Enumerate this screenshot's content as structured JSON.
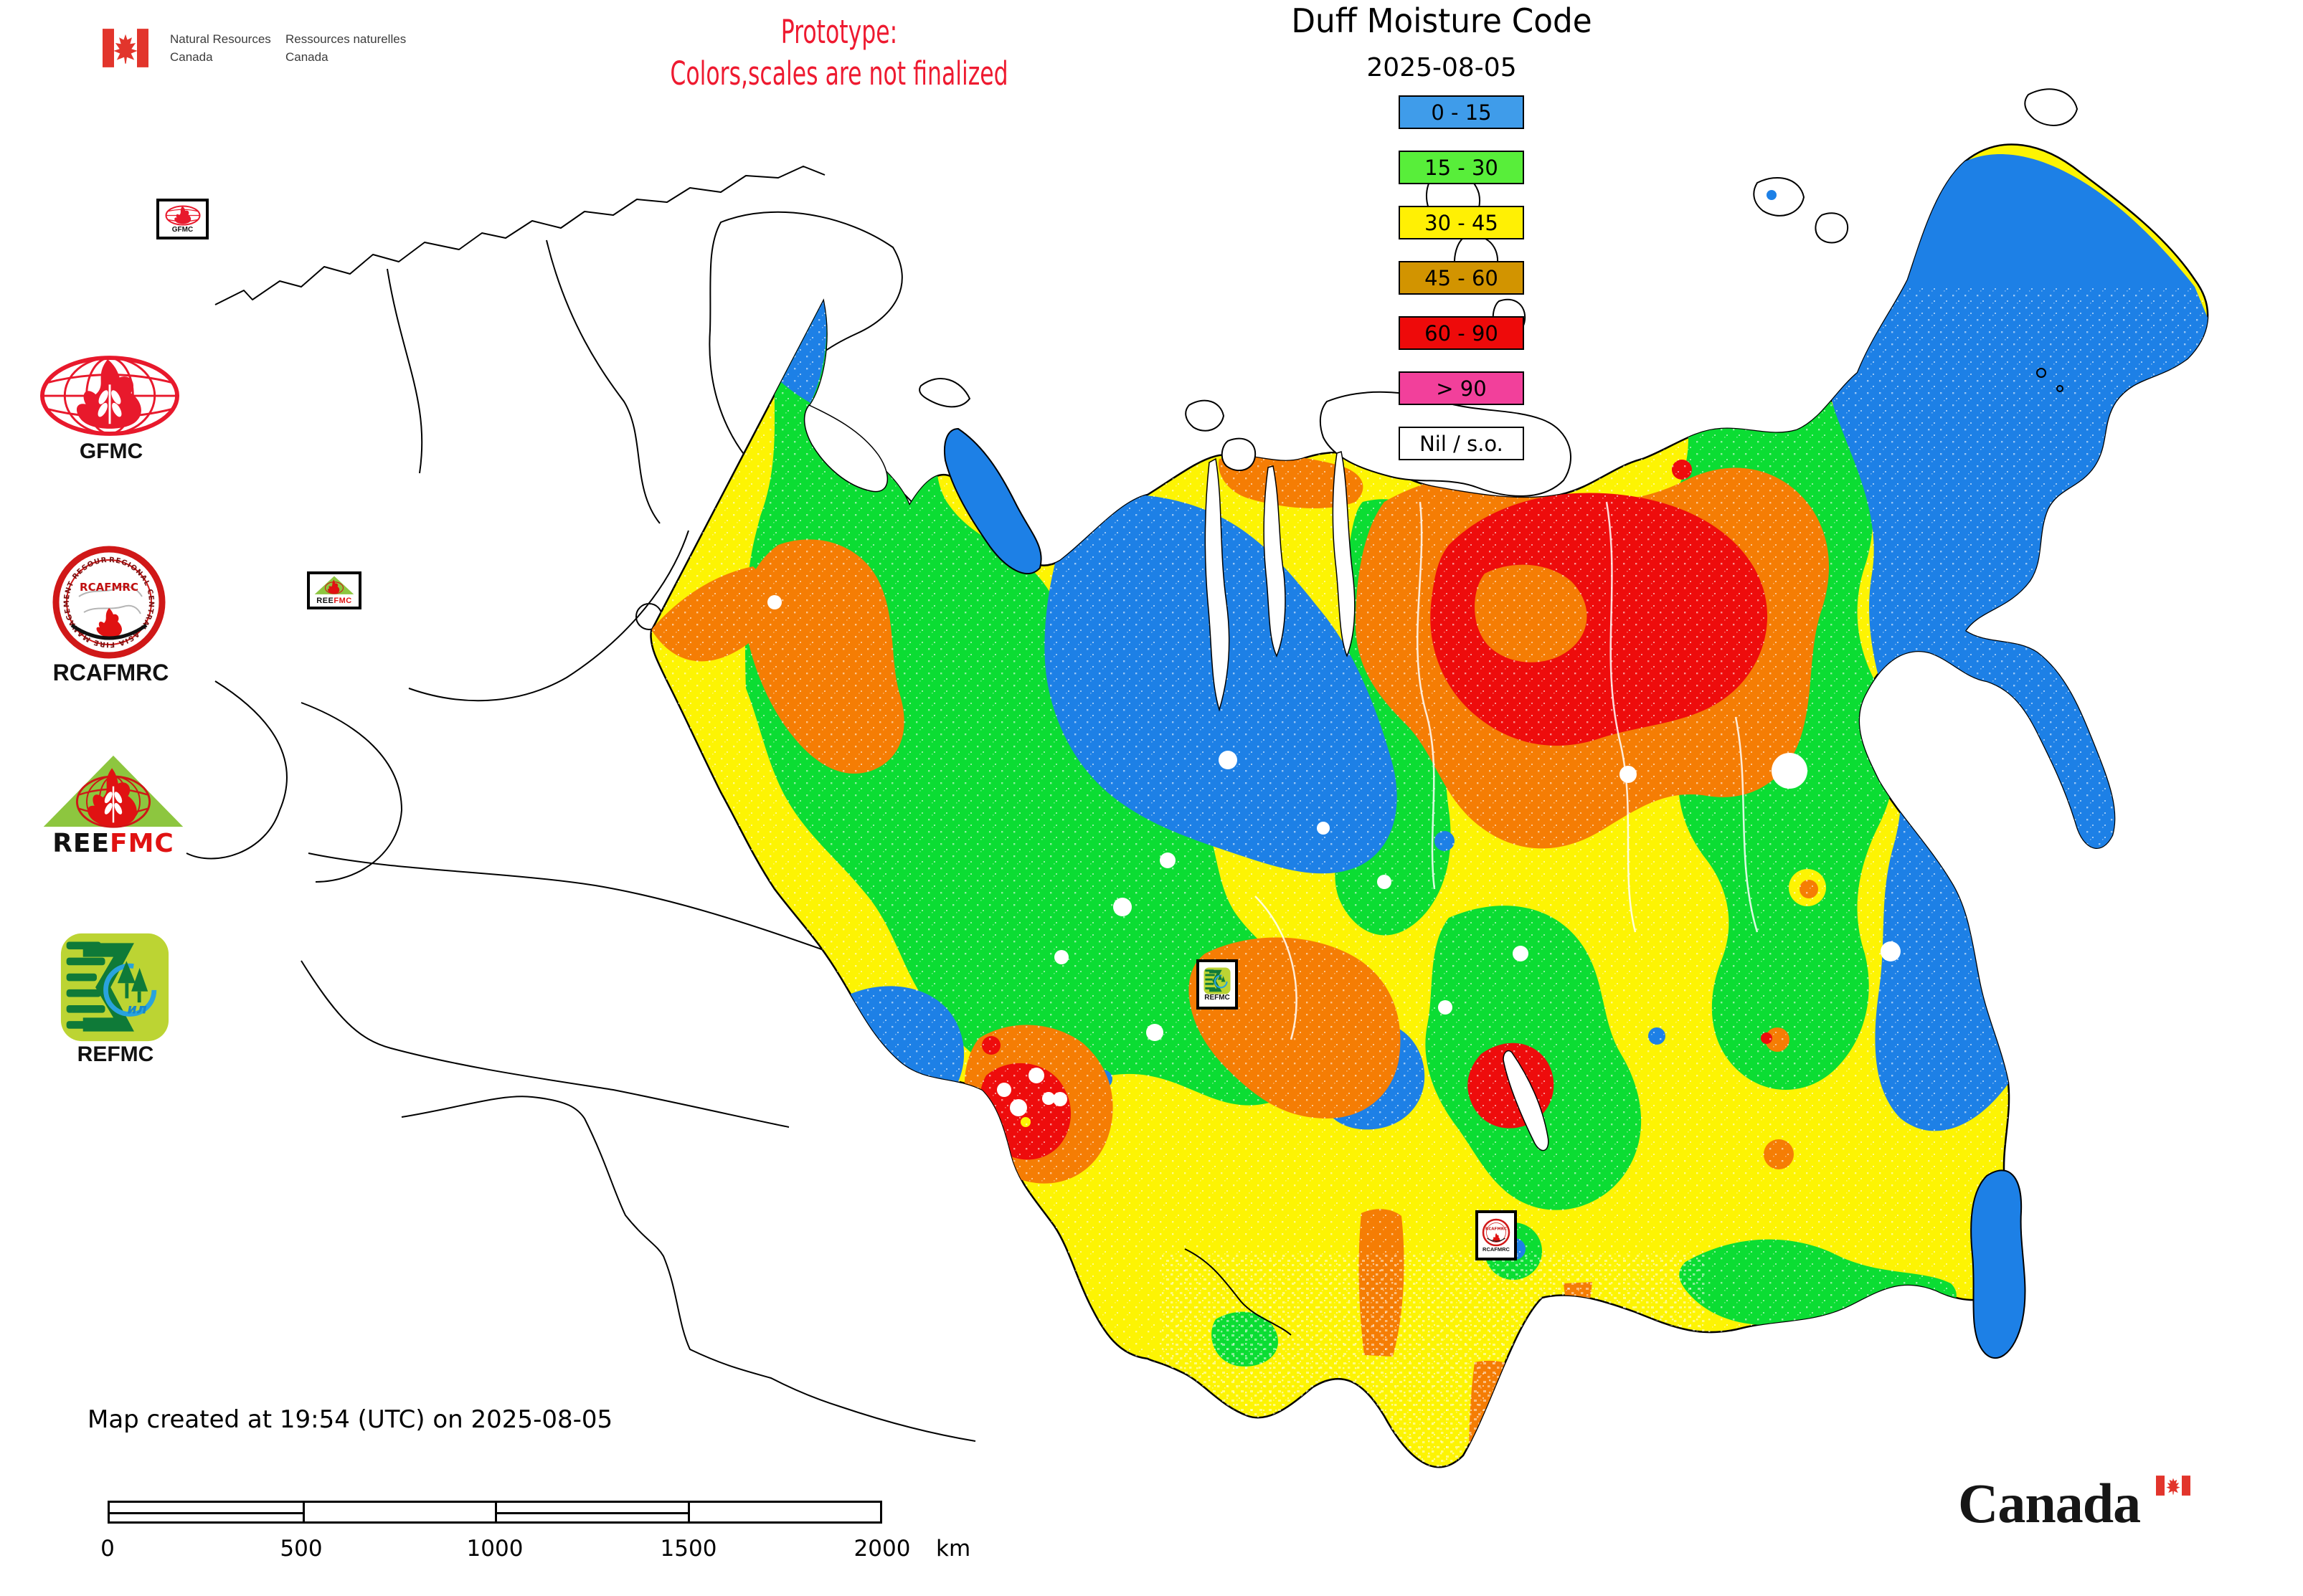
{
  "header": {
    "en_line1": "Natural Resources",
    "en_line2": "Canada",
    "fr_line1": "Ressources naturelles",
    "fr_line2": "Canada"
  },
  "notice": {
    "line1": "Prototype:",
    "line2": "Colors,scales are not finalized",
    "color": "#ee1a30"
  },
  "title": "Duff Moisture Code",
  "date": "2025-08-05",
  "legend": {
    "items": [
      {
        "label": "0 - 15",
        "color": "#3f9cea"
      },
      {
        "label": "15 - 30",
        "color": "#58ee3a"
      },
      {
        "label": "30 - 45",
        "color": "#fff004"
      },
      {
        "label": "45 - 60",
        "color": "#d29400"
      },
      {
        "label": "60 - 90",
        "color": "#ee0a0a"
      },
      {
        "label": "> 90",
        "color": "#f2409b"
      },
      {
        "label": "Nil / s.o.",
        "color": "#ffffff"
      }
    ]
  },
  "logos": {
    "gfmc": {
      "label": "GFMC"
    },
    "rcafmrc": {
      "label": "RCAFMRC",
      "badge_text": "RCAFMRC",
      "ring_text": "REGIONAL CENTRAL ASIA FIRE MANAGEMENT RESOURCE CENTER"
    },
    "reefmc": {
      "wordmark_black": "REE",
      "wordmark_red": "FMC"
    },
    "refmc": {
      "label": "REFMC",
      "badge_text": "ил"
    }
  },
  "map": {
    "colors": {
      "blue": "#1d80e6",
      "green": "#0bdd33",
      "yellow": "#fdf403",
      "orange": "#f57d04",
      "red": "#ee0c0c",
      "white": "#ffffff"
    },
    "markers": {
      "gfmc": {
        "label": "GFMC"
      },
      "reefmc": {
        "black": "REE",
        "red": "FMC"
      },
      "refmc": {
        "label": "REFMC"
      },
      "rcafmrc": {
        "label": "RCAFMRC"
      }
    }
  },
  "footer": {
    "created_text": "Map created at 19:54 (UTC) on 2025-08-05",
    "wordmark": "Canada"
  },
  "scalebar": {
    "ticks": [
      "0",
      "500",
      "1000",
      "1500",
      "2000"
    ],
    "unit": "km"
  }
}
